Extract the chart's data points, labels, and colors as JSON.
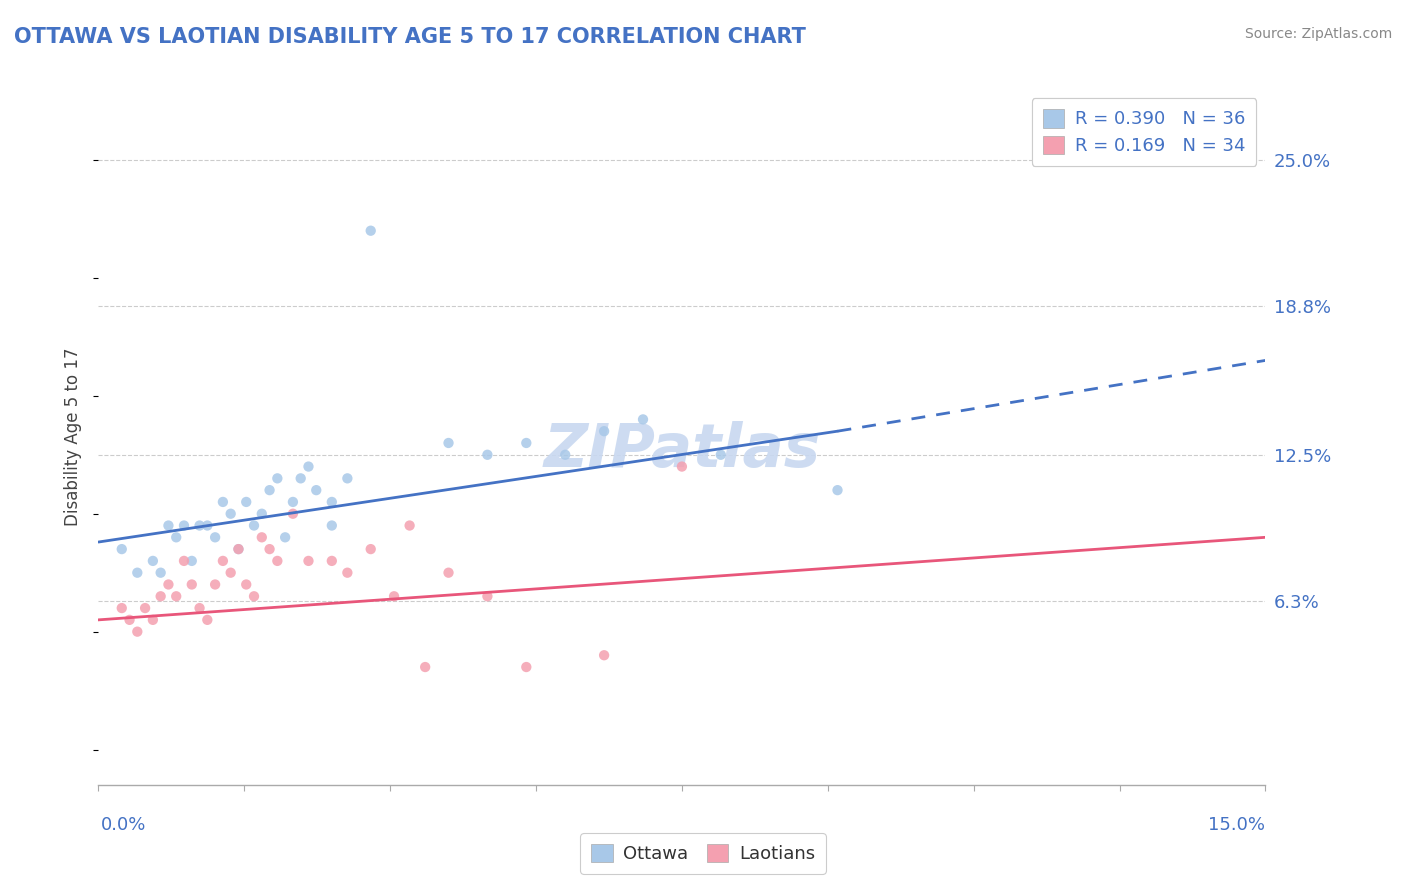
{
  "title": "OTTAWA VS LAOTIAN DISABILITY AGE 5 TO 17 CORRELATION CHART",
  "source": "Source: ZipAtlas.com",
  "ylabel_ticks": [
    6.3,
    12.5,
    18.8,
    25.0
  ],
  "xlim": [
    0.0,
    15.0
  ],
  "ylim": [
    -1.5,
    28.0
  ],
  "ottawa_R": 0.39,
  "ottawa_N": 36,
  "laotian_R": 0.169,
  "laotian_N": 34,
  "ottawa_color": "#a8c8e8",
  "laotian_color": "#f4a0b0",
  "ottawa_line_color": "#4472C4",
  "laotian_line_color": "#e8567a",
  "grid_color": "#cccccc",
  "title_color": "#4472C4",
  "watermark_color": "#c8d8f0",
  "ottawa_x": [
    0.3,
    0.5,
    0.7,
    0.8,
    0.9,
    1.0,
    1.1,
    1.2,
    1.3,
    1.4,
    1.5,
    1.6,
    1.7,
    1.8,
    1.9,
    2.0,
    2.1,
    2.2,
    2.3,
    2.4,
    2.5,
    2.6,
    2.7,
    2.8,
    3.0,
    3.2,
    3.5,
    4.5,
    5.0,
    5.5,
    6.0,
    6.5,
    7.0,
    8.0,
    9.5,
    3.0
  ],
  "ottawa_y": [
    8.5,
    7.5,
    8.0,
    7.5,
    9.5,
    9.0,
    9.5,
    8.0,
    9.5,
    9.5,
    9.0,
    10.5,
    10.0,
    8.5,
    10.5,
    9.5,
    10.0,
    11.0,
    11.5,
    9.0,
    10.5,
    11.5,
    12.0,
    11.0,
    9.5,
    11.5,
    22.0,
    13.0,
    12.5,
    13.0,
    12.5,
    13.5,
    14.0,
    12.5,
    11.0,
    10.5
  ],
  "laotian_x": [
    0.3,
    0.4,
    0.5,
    0.6,
    0.7,
    0.8,
    0.9,
    1.0,
    1.1,
    1.2,
    1.3,
    1.4,
    1.5,
    1.6,
    1.7,
    1.8,
    1.9,
    2.0,
    2.1,
    2.2,
    2.3,
    2.5,
    2.7,
    3.0,
    3.2,
    3.5,
    3.8,
    4.2,
    4.5,
    5.0,
    5.5,
    6.5,
    7.5,
    4.0
  ],
  "laotian_y": [
    6.0,
    5.5,
    5.0,
    6.0,
    5.5,
    6.5,
    7.0,
    6.5,
    8.0,
    7.0,
    6.0,
    5.5,
    7.0,
    8.0,
    7.5,
    8.5,
    7.0,
    6.5,
    9.0,
    8.5,
    8.0,
    10.0,
    8.0,
    8.0,
    7.5,
    8.5,
    6.5,
    3.5,
    7.5,
    6.5,
    3.5,
    4.0,
    12.0,
    9.5
  ],
  "ottawa_line_x0": 0.0,
  "ottawa_line_x_solid_end": 9.5,
  "ottawa_line_x1": 15.0,
  "ottawa_line_y0": 8.8,
  "ottawa_line_y_solid_end": 13.5,
  "ottawa_line_y1": 16.5,
  "laotian_line_x0": 0.0,
  "laotian_line_x1": 15.0,
  "laotian_line_y0": 5.5,
  "laotian_line_y1": 9.0
}
